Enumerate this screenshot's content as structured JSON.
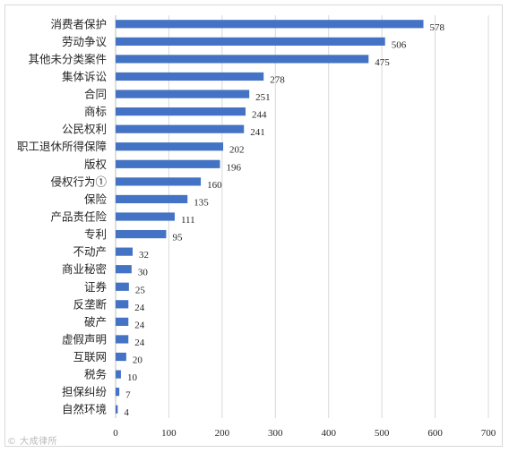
{
  "chart_data": {
    "type": "bar",
    "orientation": "horizontal",
    "title": "",
    "xlabel": "",
    "ylabel": "",
    "categories": [
      "消费者保护",
      "劳动争议",
      "其他未分类案件",
      "集体诉讼",
      "合同",
      "商标",
      "公民权利",
      "职工退休所得保障",
      "版权",
      "侵权行为①",
      "保险",
      "产品责任险",
      "专利",
      "不动产",
      "商业秘密",
      "证券",
      "反垄断",
      "破产",
      "虚假声明",
      "互联网",
      "税务",
      "担保纠纷",
      "自然环境"
    ],
    "values": [
      578,
      506,
      475,
      278,
      251,
      244,
      241,
      202,
      196,
      160,
      135,
      111,
      95,
      32,
      30,
      25,
      24,
      24,
      24,
      20,
      10,
      7,
      4
    ],
    "xlim": [
      0,
      700
    ],
    "xticks": [
      0,
      100,
      200,
      300,
      400,
      500,
      600,
      700
    ],
    "grid": "vertical",
    "legend": "none",
    "bar_color": "#4472c4",
    "grid_color": "#d9d9d9"
  },
  "watermark": "© 大成律所"
}
